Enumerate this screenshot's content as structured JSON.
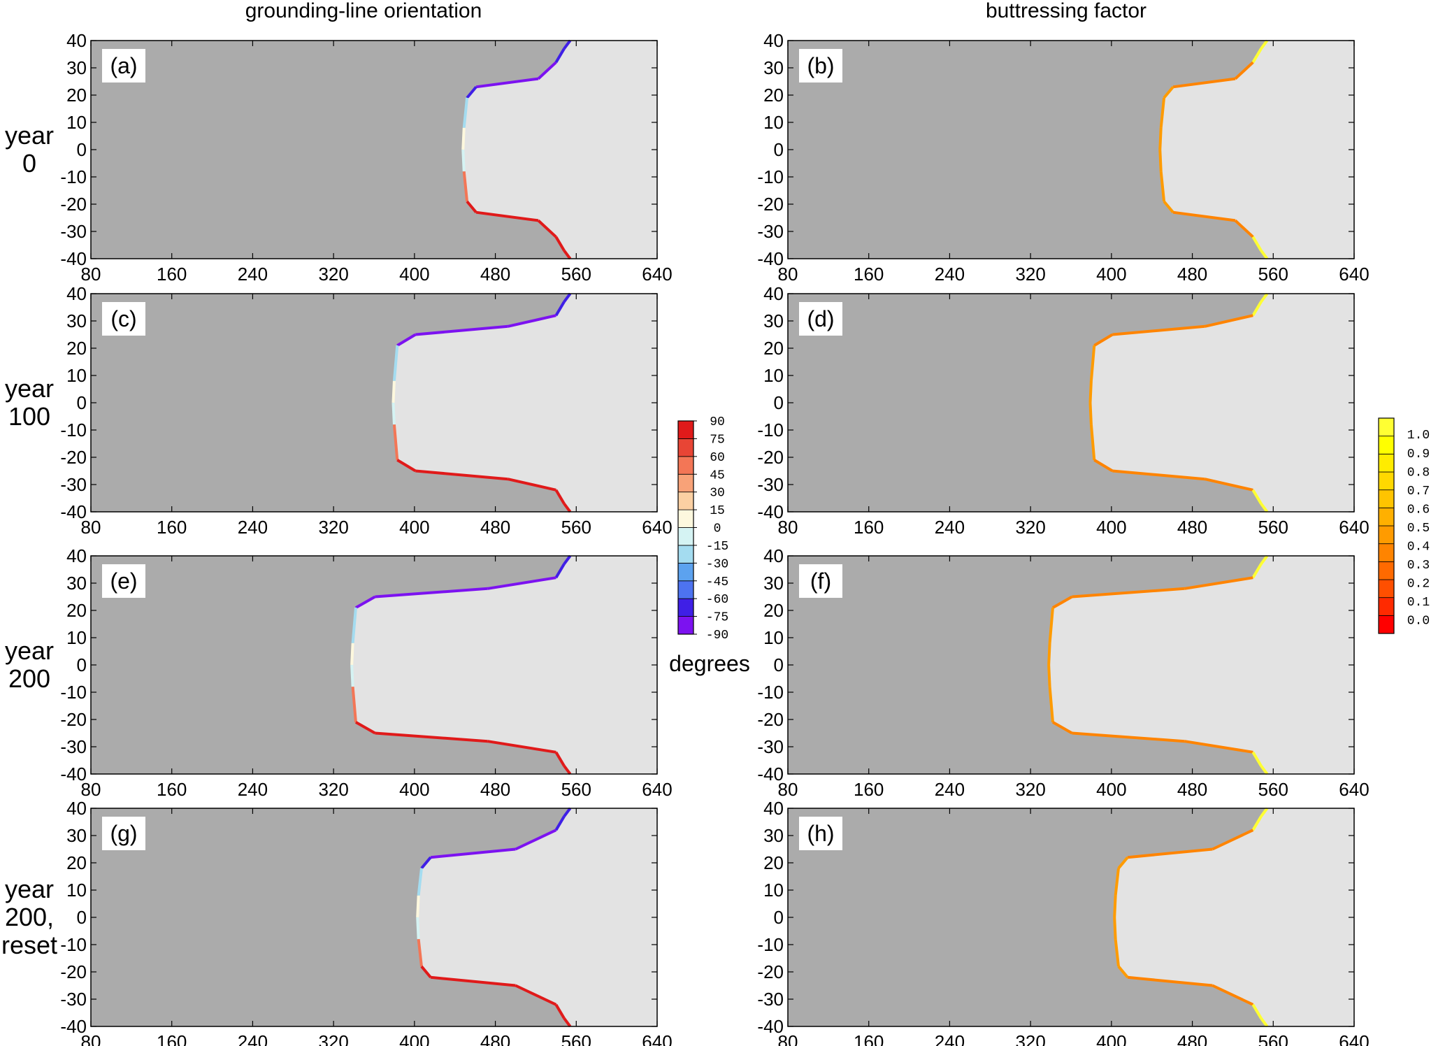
{
  "column_titles": [
    "grounding-line orientation",
    "buttressing factor"
  ],
  "row_labels": [
    [
      "year",
      "0"
    ],
    [
      "year",
      "100"
    ],
    [
      "year",
      "200"
    ],
    [
      "year",
      "200,",
      "reset"
    ]
  ],
  "panel_labels": [
    "(a)",
    "(b)",
    "(c)",
    "(d)",
    "(e)",
    "(f)",
    "(g)",
    "(h)"
  ],
  "colors": {
    "grounded": "#ababab",
    "floating": "#e3e3e3",
    "orientation_scale": [
      "#7c12f0",
      "#3f1fe6",
      "#4d73f0",
      "#5ca2ef",
      "#a4dcf0",
      "#d5f3f3",
      "#fdf8de",
      "#fbd0a3",
      "#f8a278",
      "#f37656",
      "#e84535",
      "#e01a1a"
    ],
    "buttressing_scale": [
      "#ff0000",
      "#ff2a00",
      "#ff4f00",
      "#ff6a00",
      "#ff8400",
      "#ff9b00",
      "#ffb000",
      "#ffc400",
      "#ffd800",
      "#ffec00",
      "#ffff00",
      "#ffff33"
    ]
  },
  "orientation_colorbar": {
    "ticks": [
      "-90",
      "-75",
      "-60",
      "-45",
      "-30",
      "-15",
      "0",
      "15",
      "30",
      "45",
      "60",
      "75",
      "90"
    ],
    "label": "degrees"
  },
  "buttressing_colorbar": {
    "ticks": [
      "0.0",
      "0.1",
      "0.2",
      "0.3",
      "0.4",
      "0.5",
      "0.6",
      "0.7",
      "0.8",
      "0.9",
      "1.0"
    ]
  },
  "chart_data": [
    {
      "panel": "(a)",
      "type": "heatmap",
      "quantity": "grounding-line orientation",
      "x_ticks": [
        80,
        160,
        240,
        320,
        400,
        480,
        560,
        640
      ],
      "y_ticks": [
        40,
        30,
        20,
        10,
        0,
        -10,
        -20,
        -30,
        -40
      ],
      "xlim": [
        80,
        640
      ],
      "ylim": [
        -40,
        40
      ],
      "grounding_line": {
        "upper_step_x": 455,
        "upper_step_y": 23,
        "lower_step_x": 455,
        "lower_step_y": -23,
        "nose_x": 449,
        "outlet_x": 550
      }
    },
    {
      "panel": "(b)",
      "type": "heatmap",
      "quantity": "buttressing factor",
      "x_ticks": [
        80,
        160,
        240,
        320,
        400,
        480,
        560,
        640
      ],
      "y_ticks": [
        40,
        30,
        20,
        10,
        0,
        -10,
        -20,
        -30,
        -40
      ],
      "xlim": [
        80,
        640
      ],
      "ylim": [
        -40,
        40
      ],
      "grounding_line": {
        "upper_step_x": 455,
        "upper_step_y": 23,
        "lower_step_x": 455,
        "lower_step_y": -23,
        "nose_x": 449,
        "outlet_x": 550
      }
    },
    {
      "panel": "(c)",
      "type": "heatmap",
      "quantity": "grounding-line orientation",
      "x_ticks": [
        80,
        160,
        240,
        320,
        400,
        480,
        560,
        640
      ],
      "y_ticks": [
        40,
        30,
        20,
        10,
        0,
        -10,
        -20,
        -30,
        -40
      ],
      "xlim": [
        80,
        640
      ],
      "ylim": [
        -40,
        40
      ],
      "grounding_line": {
        "upper_step_x": 395,
        "upper_step_y": 25,
        "lower_step_x": 395,
        "lower_step_y": -25,
        "nose_x": 380,
        "outlet_x": 550
      }
    },
    {
      "panel": "(d)",
      "type": "heatmap",
      "quantity": "buttressing factor",
      "x_ticks": [
        80,
        160,
        240,
        320,
        400,
        480,
        560,
        640
      ],
      "y_ticks": [
        40,
        30,
        20,
        10,
        0,
        -10,
        -20,
        -30,
        -40
      ],
      "xlim": [
        80,
        640
      ],
      "ylim": [
        -40,
        40
      ],
      "grounding_line": {
        "upper_step_x": 395,
        "upper_step_y": 25,
        "lower_step_x": 395,
        "lower_step_y": -25,
        "nose_x": 380,
        "outlet_x": 550
      }
    },
    {
      "panel": "(e)",
      "type": "heatmap",
      "quantity": "grounding-line orientation",
      "x_ticks": [
        80,
        160,
        240,
        320,
        400,
        480,
        560,
        640
      ],
      "y_ticks": [
        40,
        30,
        20,
        10,
        0,
        -10,
        -20,
        -30,
        -40
      ],
      "xlim": [
        80,
        640
      ],
      "ylim": [
        -40,
        40
      ],
      "grounding_line": {
        "upper_step_x": 355,
        "upper_step_y": 25,
        "lower_step_x": 355,
        "lower_step_y": -25,
        "nose_x": 339,
        "outlet_x": 550
      }
    },
    {
      "panel": "(f)",
      "type": "heatmap",
      "quantity": "buttressing factor",
      "x_ticks": [
        80,
        160,
        240,
        320,
        400,
        480,
        560,
        640
      ],
      "y_ticks": [
        40,
        30,
        20,
        10,
        0,
        -10,
        -20,
        -30,
        -40
      ],
      "xlim": [
        80,
        640
      ],
      "ylim": [
        -40,
        40
      ],
      "grounding_line": {
        "upper_step_x": 355,
        "upper_step_y": 25,
        "lower_step_x": 355,
        "lower_step_y": -25,
        "nose_x": 339,
        "outlet_x": 550
      }
    },
    {
      "panel": "(g)",
      "type": "heatmap",
      "quantity": "grounding-line orientation",
      "x_ticks": [
        80,
        160,
        240,
        320,
        400,
        480,
        560,
        640
      ],
      "y_ticks": [
        40,
        30,
        20,
        10,
        0,
        -10,
        -20,
        -30,
        -40
      ],
      "xlim": [
        80,
        640
      ],
      "ylim": [
        -40,
        40
      ],
      "grounding_line": {
        "upper_step_x": 410,
        "upper_step_y": 22,
        "lower_step_x": 410,
        "lower_step_y": -22,
        "nose_x": 404,
        "outlet_x": 550
      }
    },
    {
      "panel": "(h)",
      "type": "heatmap",
      "quantity": "buttressing factor",
      "x_ticks": [
        80,
        160,
        240,
        320,
        400,
        480,
        560,
        640
      ],
      "y_ticks": [
        40,
        30,
        20,
        10,
        0,
        -10,
        -20,
        -30,
        -40
      ],
      "xlim": [
        80,
        640
      ],
      "ylim": [
        -40,
        40
      ],
      "grounding_line": {
        "upper_step_x": 410,
        "upper_step_y": 22,
        "lower_step_x": 410,
        "lower_step_y": -22,
        "nose_x": 404,
        "outlet_x": 550
      }
    }
  ]
}
